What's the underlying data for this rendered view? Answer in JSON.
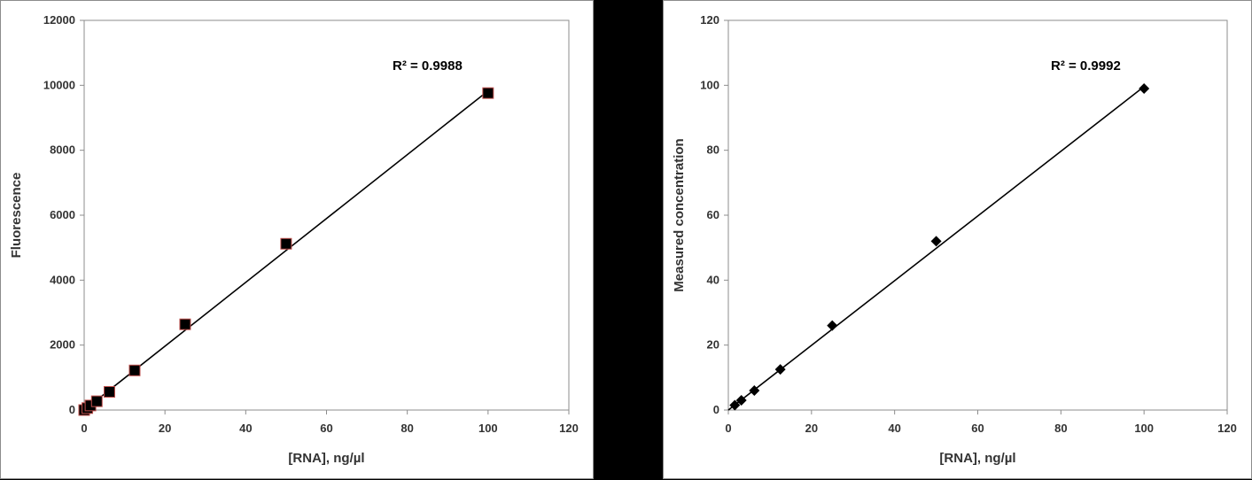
{
  "chart_data": [
    {
      "type": "scatter",
      "xlabel": "[RNA], ng/µl",
      "ylabel": "Fluorescence",
      "xlim": [
        0,
        120
      ],
      "ylim": [
        0,
        12000
      ],
      "xticks": [
        0,
        20,
        40,
        60,
        80,
        100,
        120
      ],
      "yticks": [
        0,
        2000,
        4000,
        6000,
        8000,
        10000,
        12000
      ],
      "grid": false,
      "marker": "square",
      "marker_color": "#000000",
      "marker_edge_color": "#c0504d",
      "series": [
        {
          "x": [
            0,
            0.78,
            1.56,
            3.13,
            6.25,
            12.5,
            25,
            50,
            100
          ],
          "y": [
            0,
            60,
            140,
            270,
            560,
            1220,
            2640,
            5120,
            9760
          ]
        }
      ],
      "trendline": {
        "type": "linear",
        "x": [
          0,
          100
        ],
        "y": [
          0,
          9830
        ],
        "r2_label": "R² = 0.9988"
      }
    },
    {
      "type": "scatter",
      "xlabel": "[RNA], ng/µl",
      "ylabel": "Measured  concentration",
      "xlim": [
        0,
        120
      ],
      "ylim": [
        0,
        120
      ],
      "xticks": [
        0,
        20,
        40,
        60,
        80,
        100,
        120
      ],
      "yticks": [
        0,
        20,
        40,
        60,
        80,
        100,
        120
      ],
      "grid": false,
      "marker": "diamond",
      "marker_color": "#000000",
      "series": [
        {
          "x": [
            1.56,
            3.13,
            6.25,
            12.5,
            25,
            50,
            100
          ],
          "y": [
            1.5,
            3,
            6,
            12.5,
            26,
            52,
            99
          ]
        }
      ],
      "trendline": {
        "type": "linear",
        "x": [
          0,
          100
        ],
        "y": [
          0,
          99.6
        ],
        "r2_label": "R² = 0.9992"
      }
    }
  ]
}
